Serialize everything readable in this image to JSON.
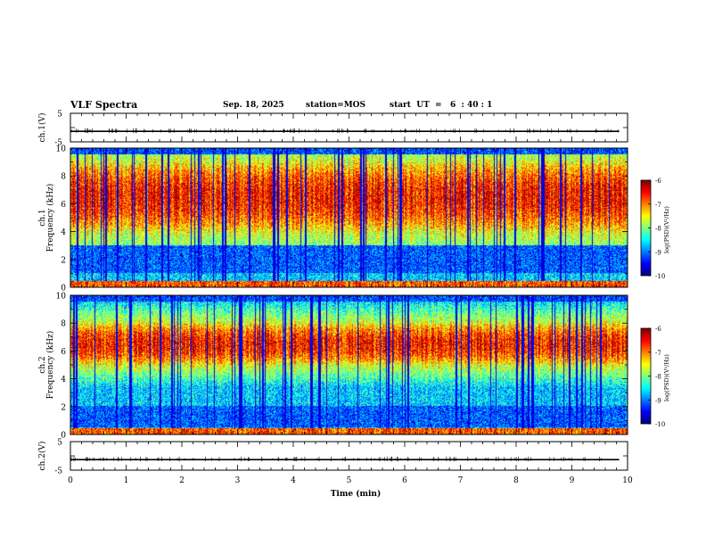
{
  "header": {
    "title": "VLF Spectra",
    "date": "Sep. 18, 2025",
    "station": "station=MOS",
    "start": "start  UT  =   6  : 40 : 1"
  },
  "chart_data": [
    {
      "type": "line",
      "panel": "ch1-waveform",
      "ylabel": "ch.1(V)",
      "ylim": [
        -5,
        5
      ],
      "yticks": [
        "5",
        "-5"
      ],
      "x": [
        0,
        9.85
      ],
      "values": [
        -1.3,
        -1.3
      ]
    },
    {
      "type": "heatmap",
      "panel": "ch1-spectrogram",
      "ylabel_line1": "ch.1",
      "ylabel_line2": "Frequency (kHz)",
      "ylim": [
        0,
        10
      ],
      "yticks": [
        "0",
        "2",
        "4",
        "6",
        "8",
        "10"
      ],
      "xlim": [
        0,
        9.85
      ],
      "intense_band_khz": [
        4,
        9
      ],
      "quiet_band_khz": [
        1,
        3
      ],
      "colorbar": {
        "label": "log(PSD)(V²/Hz)",
        "range": [
          -10,
          -6
        ],
        "ticks": [
          "-6",
          "-7",
          "-8",
          "-9",
          "-10"
        ]
      }
    },
    {
      "type": "heatmap",
      "panel": "ch2-spectrogram",
      "ylabel_line1": "ch.2",
      "ylabel_line2": "Frequency (kHz)",
      "ylim": [
        0,
        10
      ],
      "yticks": [
        "0",
        "2",
        "4",
        "6",
        "8",
        "10"
      ],
      "xlim": [
        0,
        9.85
      ],
      "intense_band_khz": [
        5,
        8
      ],
      "quiet_band_khz": [
        0.5,
        2
      ],
      "colorbar": {
        "label": "log(PSD)(V²/Hz)",
        "range": [
          -10,
          -6
        ],
        "ticks": [
          "-6",
          "-7",
          "-8",
          "-9",
          "-10"
        ]
      }
    },
    {
      "type": "line",
      "panel": "ch2-waveform",
      "ylabel": "ch.2(V)",
      "ylim": [
        -5,
        5
      ],
      "yticks": [
        "5",
        "-5"
      ],
      "x": [
        0,
        9.85
      ],
      "values": [
        -1.3,
        -1.3
      ]
    }
  ],
  "xaxis": {
    "label": "Time  (min)",
    "range": [
      0,
      10
    ],
    "ticks": [
      "0",
      "1",
      "2",
      "3",
      "4",
      "5",
      "6",
      "7",
      "8",
      "9",
      "10"
    ]
  }
}
